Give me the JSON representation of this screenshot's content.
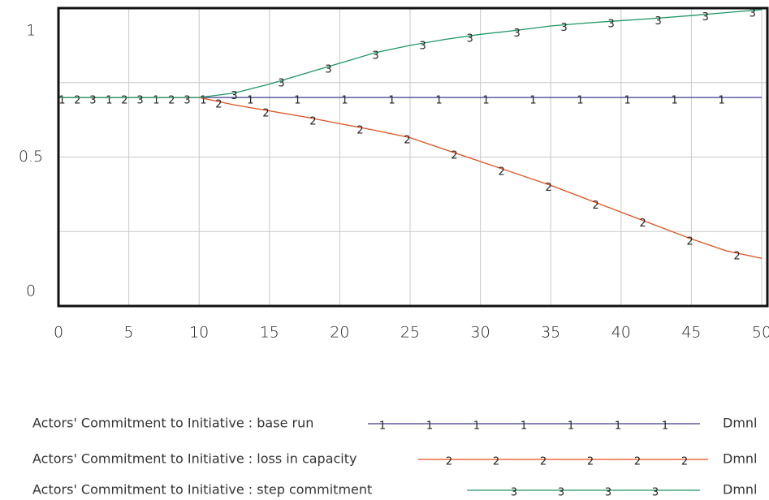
{
  "chart_data": {
    "type": "line",
    "x": [
      0,
      5,
      10,
      12.5,
      15,
      17.5,
      20,
      22.5,
      25,
      27.5,
      30,
      32.5,
      35,
      37.5,
      40,
      42.5,
      45,
      47.5,
      50
    ],
    "series": [
      {
        "name": "Actors' Commitment to Initiative : base run",
        "marker": "1",
        "units": "Dmnl",
        "color": "#3c3c8c",
        "values": [
          0.7,
          0.7,
          0.7,
          0.7,
          0.7,
          0.7,
          0.7,
          0.7,
          0.7,
          0.7,
          0.7,
          0.7,
          0.7,
          0.7,
          0.7,
          0.7,
          0.7,
          0.7,
          0.7
        ]
      },
      {
        "name": "Actors' Commitment to Initiative : loss in capacity",
        "marker": "2",
        "units": "Dmnl",
        "color": "#e0501e",
        "values": [
          0.7,
          0.7,
          0.7,
          0.675,
          0.655,
          0.635,
          0.612,
          0.59,
          0.565,
          0.525,
          0.485,
          0.445,
          0.405,
          0.36,
          0.315,
          0.27,
          0.225,
          0.185,
          0.16
        ]
      },
      {
        "name": "Actors' Commitment to Initiative : step commitment",
        "marker": "3",
        "units": "Dmnl",
        "color": "#1e9664",
        "values": [
          0.7,
          0.7,
          0.7,
          0.715,
          0.745,
          0.78,
          0.815,
          0.85,
          0.875,
          0.895,
          0.912,
          0.925,
          0.94,
          0.95,
          0.958,
          0.966,
          0.975,
          0.985,
          0.995
        ]
      }
    ],
    "xlim": [
      0,
      50
    ],
    "xticks": [
      0,
      5,
      10,
      15,
      20,
      25,
      30,
      35,
      40,
      45,
      50
    ],
    "ylim": [
      0,
      1
    ],
    "yticks": [
      0,
      0.5,
      1
    ],
    "ygrid": [
      0.25,
      0.5,
      0.75
    ],
    "grid": true
  }
}
